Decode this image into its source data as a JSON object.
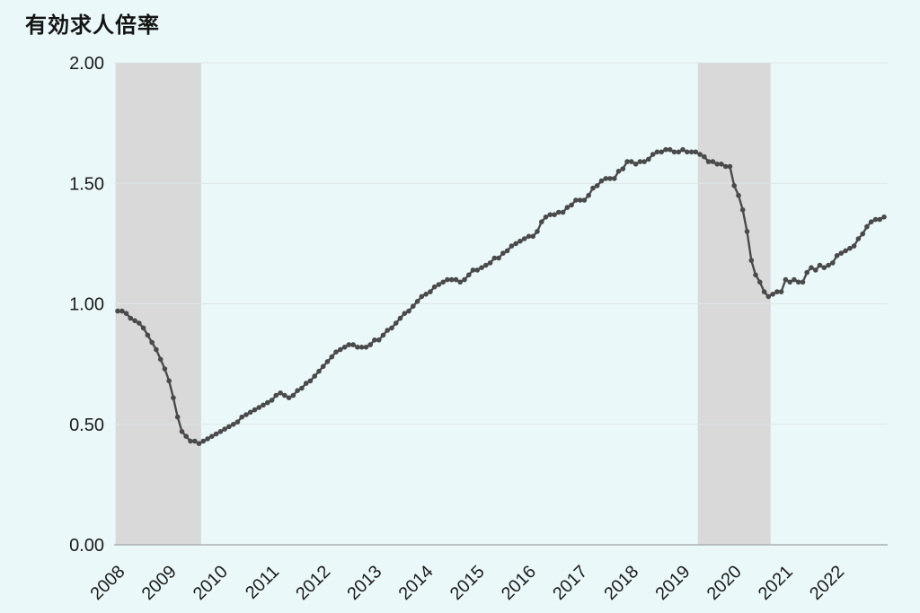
{
  "chart_data": {
    "type": "line",
    "title": "有効求人倍率",
    "x_range": [
      "2008-01",
      "2022-12"
    ],
    "x_tick_labels": [
      "2008",
      "2009",
      "2010",
      "2011",
      "2012",
      "2013",
      "2014",
      "2015",
      "2016",
      "2017",
      "2018",
      "2019",
      "2020",
      "2021",
      "2022"
    ],
    "y_ticks": [
      "0.00",
      "0.50",
      "1.00",
      "1.50",
      "2.00"
    ],
    "ylim": [
      0,
      2
    ],
    "grid": true,
    "legend": "none",
    "series": [
      {
        "name": "有効求人倍率",
        "values": [
          0.97,
          0.97,
          0.96,
          0.94,
          0.93,
          0.92,
          0.9,
          0.87,
          0.84,
          0.81,
          0.77,
          0.73,
          0.68,
          0.61,
          0.53,
          0.47,
          0.45,
          0.43,
          0.43,
          0.42,
          0.43,
          0.44,
          0.45,
          0.46,
          0.47,
          0.48,
          0.49,
          0.5,
          0.51,
          0.53,
          0.54,
          0.55,
          0.56,
          0.57,
          0.58,
          0.59,
          0.6,
          0.62,
          0.63,
          0.62,
          0.61,
          0.62,
          0.64,
          0.65,
          0.67,
          0.68,
          0.7,
          0.72,
          0.74,
          0.76,
          0.78,
          0.8,
          0.81,
          0.82,
          0.83,
          0.83,
          0.82,
          0.82,
          0.82,
          0.83,
          0.85,
          0.85,
          0.87,
          0.89,
          0.9,
          0.92,
          0.94,
          0.96,
          0.97,
          0.99,
          1.01,
          1.03,
          1.04,
          1.05,
          1.07,
          1.08,
          1.09,
          1.1,
          1.1,
          1.1,
          1.09,
          1.1,
          1.12,
          1.14,
          1.14,
          1.15,
          1.16,
          1.17,
          1.19,
          1.19,
          1.21,
          1.22,
          1.24,
          1.25,
          1.26,
          1.27,
          1.28,
          1.28,
          1.3,
          1.34,
          1.36,
          1.37,
          1.37,
          1.38,
          1.38,
          1.4,
          1.41,
          1.43,
          1.43,
          1.43,
          1.45,
          1.48,
          1.49,
          1.51,
          1.52,
          1.52,
          1.52,
          1.55,
          1.56,
          1.59,
          1.59,
          1.58,
          1.59,
          1.59,
          1.6,
          1.62,
          1.63,
          1.63,
          1.64,
          1.64,
          1.63,
          1.63,
          1.64,
          1.63,
          1.63,
          1.63,
          1.62,
          1.61,
          1.59,
          1.59,
          1.58,
          1.58,
          1.57,
          1.57,
          1.49,
          1.45,
          1.39,
          1.3,
          1.18,
          1.12,
          1.09,
          1.05,
          1.03,
          1.04,
          1.05,
          1.05,
          1.1,
          1.09,
          1.1,
          1.09,
          1.09,
          1.13,
          1.15,
          1.14,
          1.16,
          1.15,
          1.16,
          1.17,
          1.2,
          1.21,
          1.22,
          1.23,
          1.24,
          1.27,
          1.29,
          1.32,
          1.34,
          1.35,
          1.35,
          1.36
        ]
      }
    ],
    "shaded_bands": [
      {
        "from": "2008-01",
        "to": "2009-08"
      },
      {
        "from": "2019-05",
        "to": "2020-09"
      }
    ],
    "colors": {
      "background": "#ebf8f9",
      "band": "#d9d9d9",
      "grid": "#dde5e5",
      "axis": "#a9b1b1",
      "line": "#4a4a4a",
      "text": "#1b1b1b"
    }
  }
}
